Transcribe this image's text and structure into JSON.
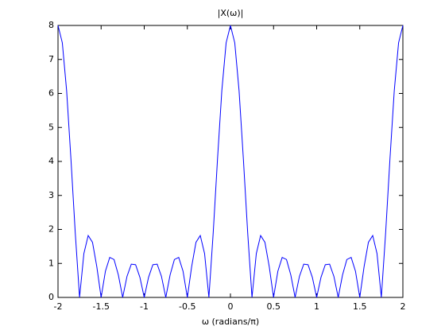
{
  "chart_data": {
    "type": "line",
    "title": "|X(ω)|",
    "x_label": "ω (radians/π)",
    "x": [
      -2,
      -1.95,
      -1.9,
      -1.85,
      -1.8,
      -1.75,
      -1.7,
      -1.65,
      -1.6,
      -1.55,
      -1.5,
      -1.45,
      -1.4,
      -1.35,
      -1.3,
      -1.25,
      -1.2,
      -1.15,
      -1.1,
      -1.05,
      -1,
      -0.95,
      -0.9,
      -0.85,
      -0.8,
      -0.75,
      -0.7,
      -0.65,
      -0.6,
      -0.55,
      -0.5,
      -0.45,
      -0.4,
      -0.35,
      -0.3,
      -0.25,
      -0.2,
      -0.15,
      -0.1,
      -0.05,
      0,
      0.05,
      0.1,
      0.15,
      0.2,
      0.25,
      0.3,
      0.35,
      0.4,
      0.45,
      0.5,
      0.55,
      0.6,
      0.65,
      0.7,
      0.75,
      0.8,
      0.85,
      0.9,
      0.95,
      1,
      1.05,
      1.1,
      1.15,
      1.2,
      1.25,
      1.3,
      1.35,
      1.4,
      1.45,
      1.5,
      1.55,
      1.6,
      1.65,
      1.7,
      1.75,
      1.8,
      1.85,
      1.9,
      1.95,
      2
    ],
    "series": [
      {
        "color": "#0000ff",
        "values": [
          8,
          7.49,
          6.08,
          4.07,
          1.9,
          0,
          1.29,
          1.82,
          1.62,
          0.905,
          0,
          0.773,
          1.176,
          1.115,
          0.66,
          0,
          0.618,
          0.978,
          0.963,
          0.59,
          0,
          0.59,
          0.963,
          0.978,
          0.618,
          0,
          0.66,
          1.115,
          1.176,
          0.773,
          0,
          0.905,
          1.62,
          1.82,
          1.29,
          0,
          1.9,
          4.07,
          6.08,
          7.49,
          8,
          7.49,
          6.08,
          4.07,
          1.9,
          0,
          1.29,
          1.82,
          1.62,
          0.905,
          0,
          0.773,
          1.176,
          1.115,
          0.66,
          0,
          0.618,
          0.978,
          0.963,
          0.59,
          0,
          0.59,
          0.963,
          0.978,
          0.618,
          0,
          0.66,
          1.115,
          1.176,
          0.773,
          0,
          0.905,
          1.62,
          1.82,
          1.29,
          0,
          1.9,
          4.07,
          6.08,
          7.49,
          8
        ]
      }
    ],
    "xlim": [
      -2,
      2
    ],
    "xticks": [
      -2,
      -1.5,
      -1,
      -0.5,
      0,
      0.5,
      1,
      1.5,
      2
    ],
    "ylim": [
      0,
      8
    ],
    "yticks": [
      0,
      1,
      2,
      3,
      4,
      5,
      6,
      7,
      8
    ]
  }
}
